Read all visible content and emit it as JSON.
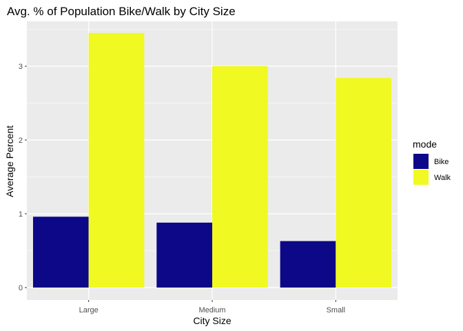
{
  "chart_data": {
    "type": "bar",
    "title": "Avg. % of Population Bike/Walk by City Size",
    "xlabel": "City Size",
    "ylabel": "Average Percent",
    "categories": [
      "Large",
      "Medium",
      "Small"
    ],
    "series": [
      {
        "name": "Bike",
        "values": [
          0.96,
          0.88,
          0.63
        ],
        "color": "#0d0887"
      },
      {
        "name": "Walk",
        "values": [
          3.45,
          3.0,
          2.84
        ],
        "color": "#f0f921"
      }
    ],
    "ylim": [
      0,
      3.6
    ],
    "yticks": [
      0,
      1,
      2,
      3
    ],
    "grid": true,
    "legend": {
      "title": "mode",
      "placement": "right"
    },
    "panel_color": "#ebebeb"
  }
}
